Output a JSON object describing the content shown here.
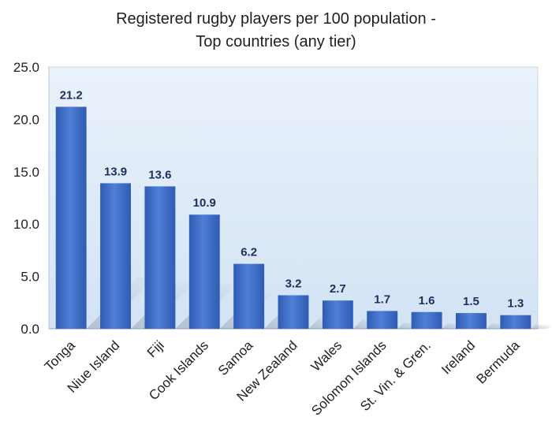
{
  "chart_data": {
    "type": "bar",
    "title_lines": [
      "Registered rugby players per 100 population -",
      "Top countries (any tier)"
    ],
    "categories": [
      "Tonga",
      "Niue Island",
      "Fiji",
      "Cook Islands",
      "Samoa",
      "New Zealand",
      "Wales",
      "Solomon Islands",
      "St. Vin. & Gren.",
      "Ireland",
      "Bermuda"
    ],
    "values": [
      21.2,
      13.9,
      13.6,
      10.9,
      6.2,
      3.2,
      2.7,
      1.7,
      1.6,
      1.5,
      1.3
    ],
    "data_labels": [
      "21.2",
      "13.9",
      "13.6",
      "10.9",
      "6.2",
      "3.2",
      "2.7",
      "1.7",
      "1.6",
      "1.5",
      "1.3"
    ],
    "y_ticks": [
      "0.0",
      "5.0",
      "10.0",
      "15.0",
      "20.0",
      "25.0"
    ],
    "ylim": [
      0,
      25
    ],
    "xlabel": "",
    "ylabel": "",
    "grid": false,
    "legend": "none",
    "colors": {
      "bar_top": "#4f7fd6",
      "bar_bottom": "#2f5bb3",
      "plot_bg_top": "#eaf2fb",
      "plot_bg_bottom": "#d3e3f5",
      "data_label": "#1e2f5c"
    }
  }
}
